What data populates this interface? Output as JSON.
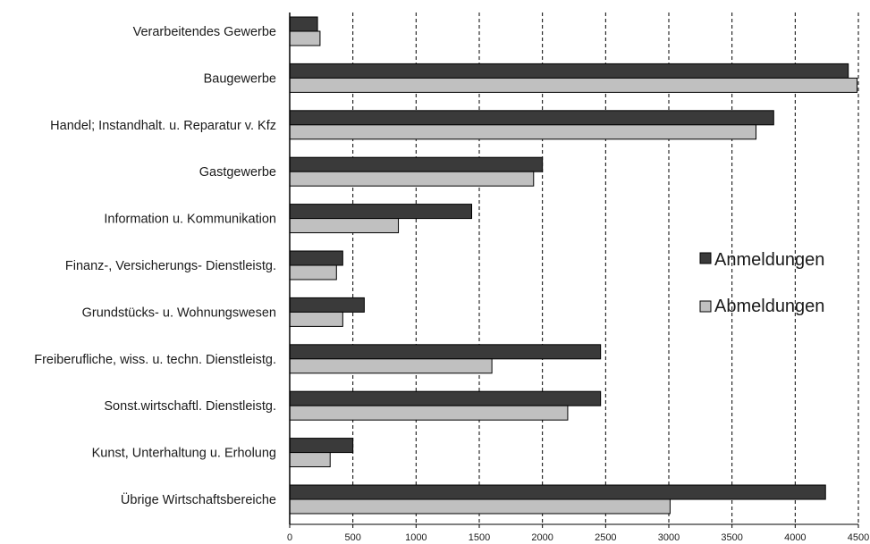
{
  "chart_data": {
    "type": "bar",
    "orientation": "horizontal",
    "categories": [
      "Verarbeitendes Gewerbe",
      "Baugewerbe",
      "Handel; Instandhalt. u. Reparatur v. Kfz",
      "Gastgewerbe",
      "Information u. Kommunikation",
      "Finanz-, Versicherungs- Dienstleistg.",
      "Grundstücks- u. Wohnungswesen",
      "Freiberufliche, wiss. u. techn. Dienstleistg.",
      "Sonst.wirtschaftl. Dienstleistg.",
      "Kunst, Unterhaltung u. Erholung",
      "Übrige Wirtschaftsbereiche"
    ],
    "series": [
      {
        "name": "Anmeldungen",
        "color": "#3a3a3a",
        "values": [
          220,
          4420,
          3830,
          2000,
          1440,
          420,
          590,
          2460,
          2460,
          500,
          4240
        ]
      },
      {
        "name": "Abmeldungen",
        "color": "#c0c0c0",
        "values": [
          240,
          4490,
          3690,
          1930,
          860,
          370,
          420,
          1600,
          2200,
          320,
          3010
        ]
      }
    ],
    "xlim": [
      0,
      4500
    ],
    "xticks": [
      "0",
      "500",
      "1000",
      "1500",
      "2000",
      "2500",
      "3000",
      "3500",
      "4000",
      "4500"
    ],
    "grid": "vertical dashed",
    "legend_position": "right",
    "title": "",
    "xlabel": "",
    "ylabel": ""
  }
}
